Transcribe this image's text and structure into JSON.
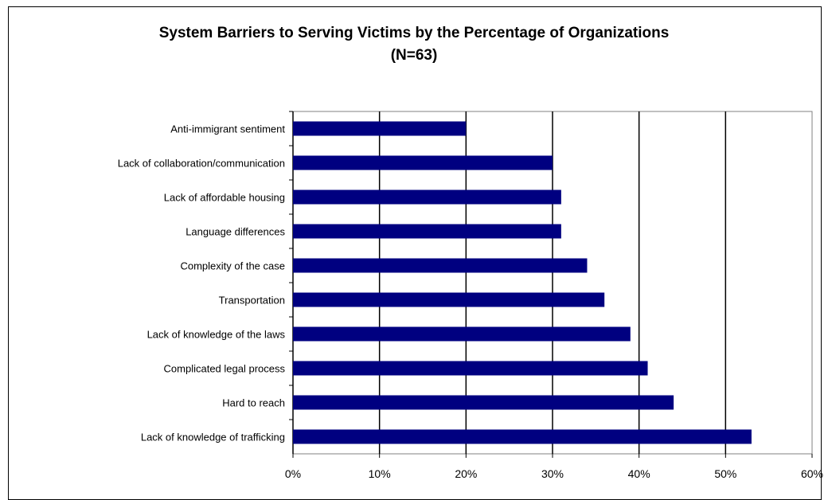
{
  "chart_data": {
    "type": "bar",
    "orientation": "horizontal",
    "title": "System Barriers to Serving Victims by the Percentage of Organizations",
    "subtitle": "(N=63)",
    "categories": [
      "Anti-immigrant sentiment",
      "Lack of collaboration/communication",
      "Lack of affordable housing",
      "Language differences",
      "Complexity of the case",
      "Transportation",
      "Lack of knowledge of the laws",
      "Complicated legal process",
      "Hard to reach",
      "Lack of knowledge of trafficking"
    ],
    "values": [
      20,
      30,
      31,
      31,
      34,
      36,
      39,
      41,
      44,
      53
    ],
    "value_unit": "%",
    "xlim": [
      0,
      60
    ],
    "x_ticks": [
      "0%",
      "10%",
      "20%",
      "30%",
      "40%",
      "50%",
      "60%"
    ],
    "grid": true,
    "legend": "none",
    "bar_color": "#000080"
  }
}
